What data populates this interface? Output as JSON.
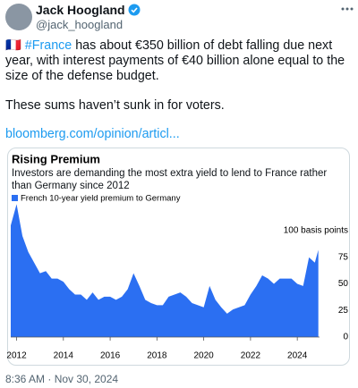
{
  "tweet": {
    "name": "Jack Hoogland",
    "handle": "@jack_hoogland",
    "flag": "🇫🇷",
    "hashtag": "#France",
    "text": " has about €350 billion of debt falling due next year, with interest payments of €40 billion alone equal to the size of the defense budget.",
    "text2": "These sums haven’t sunk in for voters.",
    "link": "bloomberg.com/opinion/articl...",
    "timestamp": "8:36 AM · Nov 30, 2024"
  },
  "chart_data": {
    "type": "area",
    "title": "Rising Premium",
    "subtitle": "Investors are demanding the most extra yield to lend to France rather than Germany since 2012",
    "x": [
      2011.75,
      2012.0,
      2012.25,
      2012.5,
      2012.75,
      2013.0,
      2013.25,
      2013.5,
      2013.75,
      2014.0,
      2014.25,
      2014.5,
      2014.75,
      2015.0,
      2015.25,
      2015.5,
      2015.75,
      2016.0,
      2016.25,
      2016.5,
      2016.75,
      2017.0,
      2017.25,
      2017.5,
      2017.75,
      2018.0,
      2018.25,
      2018.5,
      2018.75,
      2019.0,
      2019.25,
      2019.5,
      2019.75,
      2020.0,
      2020.25,
      2020.5,
      2020.75,
      2021.0,
      2021.25,
      2021.5,
      2021.75,
      2022.0,
      2022.25,
      2022.5,
      2022.75,
      2023.0,
      2023.25,
      2023.5,
      2023.75,
      2024.0,
      2024.25,
      2024.5,
      2024.75,
      2024.9
    ],
    "series": [
      {
        "name": "French 10-year yield premium to Germany",
        "color": "#2b6ff2",
        "values": [
          105,
          125,
          95,
          80,
          70,
          60,
          62,
          55,
          55,
          52,
          45,
          40,
          40,
          35,
          42,
          35,
          38,
          38,
          35,
          38,
          45,
          60,
          48,
          35,
          32,
          30,
          30,
          38,
          40,
          42,
          38,
          32,
          30,
          28,
          48,
          35,
          28,
          22,
          26,
          28,
          30,
          40,
          48,
          58,
          55,
          50,
          55,
          55,
          55,
          50,
          48,
          75,
          70,
          82
        ]
      }
    ],
    "xlim": [
      2011.75,
      2024.95
    ],
    "ylim": [
      0,
      127
    ],
    "xticks": [
      2012,
      2014,
      2016,
      2018,
      2020,
      2022,
      2024
    ],
    "yticks": [
      0,
      25,
      50,
      75,
      {
        "value": 100,
        "label": "100 basis points"
      }
    ],
    "grid": false
  }
}
